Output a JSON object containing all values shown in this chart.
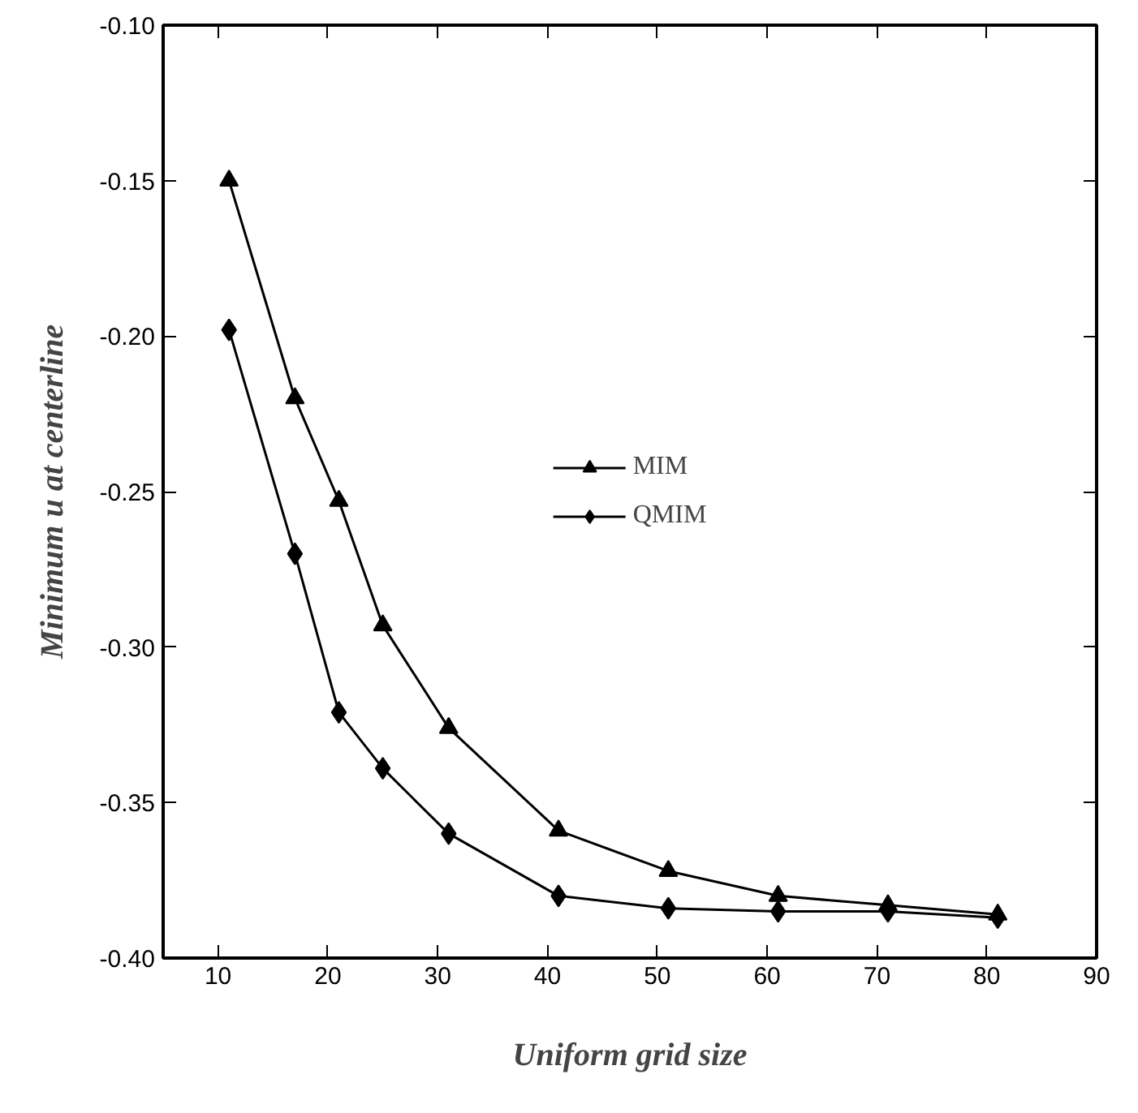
{
  "chart_data": {
    "type": "line",
    "xlabel": "Uniform grid size",
    "ylabel": "Minimum u at centerline",
    "x": [
      11,
      17,
      21,
      25,
      31,
      41,
      51,
      61,
      71,
      81
    ],
    "series": [
      {
        "name": "MIM",
        "color": "#000000",
        "marker": "triangle",
        "values": [
          -0.15,
          -0.22,
          -0.253,
          -0.293,
          -0.326,
          -0.359,
          -0.372,
          -0.38,
          -0.383,
          -0.386
        ]
      },
      {
        "name": "QMIM",
        "color": "#000000",
        "marker": "diamond",
        "values": [
          -0.198,
          -0.27,
          -0.321,
          -0.339,
          -0.36,
          -0.38,
          -0.384,
          -0.385,
          -0.385,
          -0.387
        ]
      }
    ],
    "xlim": [
      5,
      90
    ],
    "xticks": [
      10,
      20,
      30,
      40,
      50,
      60,
      70,
      80,
      90
    ],
    "ylim": [
      -0.4,
      -0.1
    ],
    "yticks": [
      {
        "value": -0.4,
        "label": "-0.40"
      },
      {
        "value": -0.35,
        "label": "-0.35"
      },
      {
        "value": -0.3,
        "label": "-0.30"
      },
      {
        "value": -0.25,
        "label": "-0.25"
      },
      {
        "value": -0.2,
        "label": "-0.20"
      },
      {
        "value": -0.15,
        "label": "-0.15"
      },
      {
        "value": -0.1,
        "label": "-0.10"
      }
    ],
    "grid": false,
    "legend": "center",
    "line_style": "solid"
  }
}
